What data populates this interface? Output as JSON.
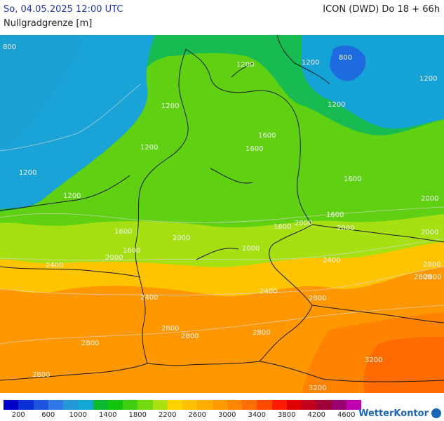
{
  "header": {
    "date_time": "So, 04.05.2025 12:00 UTC",
    "parameter": "Nullgradgrenze [m]",
    "model_run": "ICON (DWD) Do 18 + 66h"
  },
  "legend": {
    "colors": [
      "#0000c8",
      "#0a2fd6",
      "#1e55e0",
      "#2f78e6",
      "#2596d8",
      "#12a7d2",
      "#09b82d",
      "#11c40e",
      "#3ecf10",
      "#73d90f",
      "#a9e111",
      "#ffd200",
      "#ffc000",
      "#ffad00",
      "#ff9b00",
      "#ff8800",
      "#ff6e00",
      "#ff4b00",
      "#ff1c00",
      "#e00000",
      "#c0001c",
      "#a00038",
      "#9b0073",
      "#c000b0"
    ],
    "ticks": [
      "200",
      "600",
      "1000",
      "1400",
      "1800",
      "2200",
      "2600",
      "3000",
      "3400",
      "3800",
      "4200",
      "4600"
    ]
  },
  "labels": [
    {
      "text": "800"
    },
    {
      "text": "1200"
    },
    {
      "text": "800"
    },
    {
      "text": "1200"
    },
    {
      "text": "1200"
    },
    {
      "text": "1200"
    },
    {
      "text": "1200"
    },
    {
      "text": "1200"
    },
    {
      "text": "1200"
    },
    {
      "text": "1200"
    },
    {
      "text": "1600"
    },
    {
      "text": "1600"
    },
    {
      "text": "1600"
    },
    {
      "text": "1600"
    },
    {
      "text": "2000"
    },
    {
      "text": "1600"
    },
    {
      "text": "1600"
    },
    {
      "text": "2000"
    },
    {
      "text": "2000"
    },
    {
      "text": "2000"
    },
    {
      "text": "2000"
    },
    {
      "text": "1600"
    },
    {
      "text": "2000"
    },
    {
      "text": "2000"
    },
    {
      "text": "2400"
    },
    {
      "text": "2800"
    },
    {
      "text": "2400"
    },
    {
      "text": "2400"
    },
    {
      "text": "2400"
    },
    {
      "text": "2800"
    },
    {
      "text": "2800"
    },
    {
      "text": "2800"
    },
    {
      "text": "2800"
    },
    {
      "text": "2800"
    },
    {
      "text": "2800"
    },
    {
      "text": "2800"
    },
    {
      "text": "3200"
    },
    {
      "text": "3200"
    },
    {
      "text": "2800"
    }
  ],
  "logo": {
    "text": "WetterKontor"
  }
}
